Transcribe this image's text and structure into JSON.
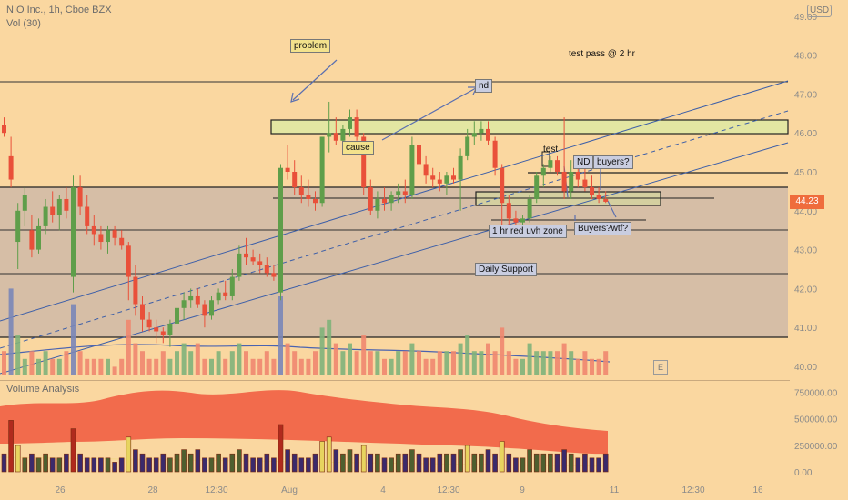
{
  "header": {
    "symbol": "NIO Inc., 1h, Cboe BZX",
    "volume_label": "Vol (30)",
    "currency": "USD",
    "indicator_title": "Volume Analysis"
  },
  "last_price": {
    "value": 44.23,
    "label": "44.23"
  },
  "pane_button": "E",
  "annotations": [
    {
      "id": "problem",
      "text": "problem"
    },
    {
      "id": "test-pass",
      "text": "test pass @ 2 hr"
    },
    {
      "id": "nd-top",
      "text": "nd"
    },
    {
      "id": "cause",
      "text": "cause"
    },
    {
      "id": "test",
      "text": "test"
    },
    {
      "id": "nd",
      "text": "ND"
    },
    {
      "id": "buyers",
      "text": "buyers?"
    },
    {
      "id": "red-uvh",
      "text": "1 hr red uvh zone"
    },
    {
      "id": "buyers-wtf",
      "text": "Buyers?wtf?"
    },
    {
      "id": "daily-support",
      "text": "Daily Support"
    }
  ],
  "colors": {
    "background": "#fad7a0",
    "up": "#5f9e4a",
    "down": "#e9503a",
    "zone_fill": "#e3e6a2",
    "range_fill": "#c9b6a8",
    "indicator_band": "#f26b4c"
  },
  "chart_data": [
    {
      "type": "candlestick",
      "title": "NIO Inc., 1h, Cboe BZX",
      "ylim": [
        39.8,
        49.2
      ],
      "y_ticks": [
        "40.00",
        "41.00",
        "42.00",
        "43.00",
        "44.00",
        "45.00",
        "46.00",
        "47.00",
        "48.00",
        "49.00"
      ],
      "x_ticks": [
        "26",
        "28",
        "12:30",
        "Aug",
        "4",
        "12:30",
        "9",
        "11",
        "12:30",
        "16"
      ],
      "series": [
        {
          "name": "NIO",
          "values": [
            {
              "o": 46.2,
              "h": 46.4,
              "l": 45.9,
              "c": 46.0
            },
            {
              "o": 45.4,
              "h": 45.9,
              "l": 44.6,
              "c": 44.8
            },
            {
              "o": 43.2,
              "h": 44.2,
              "l": 42.5,
              "c": 44.0
            },
            {
              "o": 44.0,
              "h": 44.6,
              "l": 43.6,
              "c": 44.4
            },
            {
              "o": 43.5,
              "h": 43.9,
              "l": 42.8,
              "c": 43.0
            },
            {
              "o": 43.0,
              "h": 43.8,
              "l": 42.9,
              "c": 43.6
            },
            {
              "o": 43.6,
              "h": 44.3,
              "l": 43.4,
              "c": 44.1
            },
            {
              "o": 44.1,
              "h": 44.5,
              "l": 43.7,
              "c": 43.9
            },
            {
              "o": 43.9,
              "h": 44.4,
              "l": 43.5,
              "c": 44.3
            },
            {
              "o": 44.3,
              "h": 44.6,
              "l": 43.8,
              "c": 44.0
            },
            {
              "o": 42.3,
              "h": 44.9,
              "l": 41.9,
              "c": 44.6
            },
            {
              "o": 44.6,
              "h": 44.9,
              "l": 43.9,
              "c": 44.1
            },
            {
              "o": 44.1,
              "h": 44.4,
              "l": 43.4,
              "c": 43.6
            },
            {
              "o": 43.6,
              "h": 43.9,
              "l": 43.1,
              "c": 43.4
            },
            {
              "o": 43.4,
              "h": 43.6,
              "l": 43.0,
              "c": 43.2
            },
            {
              "o": 43.2,
              "h": 43.6,
              "l": 42.9,
              "c": 43.5
            },
            {
              "o": 43.5,
              "h": 43.6,
              "l": 43.1,
              "c": 43.3
            },
            {
              "o": 43.3,
              "h": 43.5,
              "l": 43.0,
              "c": 43.1
            },
            {
              "o": 43.1,
              "h": 43.2,
              "l": 41.7,
              "c": 42.3
            },
            {
              "o": 42.3,
              "h": 42.6,
              "l": 41.3,
              "c": 41.6
            },
            {
              "o": 41.6,
              "h": 41.8,
              "l": 40.9,
              "c": 41.2
            },
            {
              "o": 41.2,
              "h": 41.4,
              "l": 40.9,
              "c": 41.0
            },
            {
              "o": 41.0,
              "h": 41.2,
              "l": 40.6,
              "c": 40.9
            },
            {
              "o": 40.9,
              "h": 41.0,
              "l": 40.6,
              "c": 40.8
            },
            {
              "o": 40.8,
              "h": 41.2,
              "l": 40.5,
              "c": 41.1
            },
            {
              "o": 41.1,
              "h": 41.6,
              "l": 41.0,
              "c": 41.5
            },
            {
              "o": 41.5,
              "h": 41.9,
              "l": 41.2,
              "c": 41.7
            },
            {
              "o": 41.7,
              "h": 42.0,
              "l": 41.5,
              "c": 41.8
            },
            {
              "o": 41.8,
              "h": 42.0,
              "l": 41.5,
              "c": 41.6
            },
            {
              "o": 41.6,
              "h": 41.7,
              "l": 41.0,
              "c": 41.3
            },
            {
              "o": 41.3,
              "h": 41.8,
              "l": 41.2,
              "c": 41.7
            },
            {
              "o": 41.7,
              "h": 42.0,
              "l": 41.6,
              "c": 41.9
            },
            {
              "o": 41.9,
              "h": 42.2,
              "l": 41.7,
              "c": 41.8
            },
            {
              "o": 41.8,
              "h": 42.5,
              "l": 41.7,
              "c": 42.3
            },
            {
              "o": 42.3,
              "h": 43.1,
              "l": 42.2,
              "c": 42.9
            },
            {
              "o": 42.9,
              "h": 43.3,
              "l": 42.6,
              "c": 42.8
            },
            {
              "o": 42.8,
              "h": 43.0,
              "l": 42.6,
              "c": 42.7
            },
            {
              "o": 42.7,
              "h": 42.9,
              "l": 42.4,
              "c": 42.6
            },
            {
              "o": 42.6,
              "h": 42.8,
              "l": 42.3,
              "c": 42.4
            },
            {
              "o": 42.4,
              "h": 42.6,
              "l": 42.2,
              "c": 42.3
            },
            {
              "o": 41.9,
              "h": 45.2,
              "l": 41.7,
              "c": 45.1
            },
            {
              "o": 45.1,
              "h": 45.7,
              "l": 44.8,
              "c": 45.0
            },
            {
              "o": 45.0,
              "h": 45.3,
              "l": 44.4,
              "c": 44.6
            },
            {
              "o": 44.6,
              "h": 44.9,
              "l": 44.2,
              "c": 44.4
            },
            {
              "o": 44.4,
              "h": 44.8,
              "l": 44.1,
              "c": 44.3
            },
            {
              "o": 44.3,
              "h": 44.5,
              "l": 44.0,
              "c": 44.2
            },
            {
              "o": 44.2,
              "h": 45.9,
              "l": 44.1,
              "c": 45.9
            },
            {
              "o": 45.9,
              "h": 46.8,
              "l": 45.5,
              "c": 46.0
            },
            {
              "o": 46.0,
              "h": 46.4,
              "l": 45.7,
              "c": 45.8
            },
            {
              "o": 45.8,
              "h": 46.2,
              "l": 45.6,
              "c": 46.1
            },
            {
              "o": 46.1,
              "h": 46.6,
              "l": 45.9,
              "c": 46.4
            },
            {
              "o": 46.4,
              "h": 46.6,
              "l": 45.8,
              "c": 45.9
            },
            {
              "o": 45.9,
              "h": 46.0,
              "l": 44.4,
              "c": 44.6
            },
            {
              "o": 44.6,
              "h": 44.8,
              "l": 43.9,
              "c": 44.0
            },
            {
              "o": 44.0,
              "h": 44.5,
              "l": 43.8,
              "c": 44.3
            },
            {
              "o": 44.3,
              "h": 44.6,
              "l": 44.0,
              "c": 44.2
            },
            {
              "o": 44.2,
              "h": 44.5,
              "l": 44.0,
              "c": 44.4
            },
            {
              "o": 44.4,
              "h": 44.7,
              "l": 44.2,
              "c": 44.5
            },
            {
              "o": 44.5,
              "h": 44.8,
              "l": 44.2,
              "c": 44.4
            },
            {
              "o": 44.4,
              "h": 45.9,
              "l": 44.3,
              "c": 45.7
            },
            {
              "o": 45.7,
              "h": 45.8,
              "l": 45.1,
              "c": 45.2
            },
            {
              "o": 45.2,
              "h": 45.4,
              "l": 44.7,
              "c": 44.9
            },
            {
              "o": 44.9,
              "h": 45.1,
              "l": 44.6,
              "c": 44.8
            },
            {
              "o": 44.8,
              "h": 45.0,
              "l": 44.5,
              "c": 44.7
            },
            {
              "o": 44.7,
              "h": 45.0,
              "l": 44.4,
              "c": 44.9
            },
            {
              "o": 44.9,
              "h": 45.1,
              "l": 44.7,
              "c": 44.8
            },
            {
              "o": 44.8,
              "h": 45.6,
              "l": 44.0,
              "c": 45.4
            },
            {
              "o": 45.4,
              "h": 46.1,
              "l": 45.3,
              "c": 45.9
            },
            {
              "o": 45.9,
              "h": 46.3,
              "l": 45.7,
              "c": 46.0
            },
            {
              "o": 46.0,
              "h": 46.3,
              "l": 45.8,
              "c": 46.1
            },
            {
              "o": 46.1,
              "h": 46.3,
              "l": 45.7,
              "c": 45.8
            },
            {
              "o": 45.8,
              "h": 45.9,
              "l": 44.9,
              "c": 45.1
            },
            {
              "o": 45.1,
              "h": 45.2,
              "l": 43.5,
              "c": 44.2
            },
            {
              "o": 44.2,
              "h": 44.4,
              "l": 43.6,
              "c": 43.8
            },
            {
              "o": 43.8,
              "h": 44.0,
              "l": 43.6,
              "c": 43.7
            },
            {
              "o": 43.7,
              "h": 43.9,
              "l": 43.6,
              "c": 43.8
            },
            {
              "o": 43.8,
              "h": 44.4,
              "l": 43.7,
              "c": 44.3
            },
            {
              "o": 44.3,
              "h": 45.0,
              "l": 44.2,
              "c": 44.9
            },
            {
              "o": 44.9,
              "h": 45.2,
              "l": 44.6,
              "c": 45.1
            },
            {
              "o": 45.1,
              "h": 45.4,
              "l": 45.0,
              "c": 45.3
            },
            {
              "o": 45.3,
              "h": 45.4,
              "l": 44.9,
              "c": 45.0
            },
            {
              "o": 45.0,
              "h": 46.4,
              "l": 44.3,
              "c": 44.5
            },
            {
              "o": 44.5,
              "h": 45.3,
              "l": 44.3,
              "c": 45.0
            },
            {
              "o": 45.0,
              "h": 45.1,
              "l": 44.6,
              "c": 44.8
            },
            {
              "o": 44.8,
              "h": 45.1,
              "l": 44.5,
              "c": 44.6
            },
            {
              "o": 44.6,
              "h": 44.9,
              "l": 44.3,
              "c": 44.4
            },
            {
              "o": 44.4,
              "h": 44.6,
              "l": 44.2,
              "c": 44.3
            },
            {
              "o": 44.3,
              "h": 44.5,
              "l": 44.2,
              "c": 44.23
            }
          ]
        }
      ],
      "volume": [
        3,
        11,
        5,
        2,
        3,
        2,
        3,
        2,
        2,
        3,
        9,
        3,
        2,
        2,
        2,
        2,
        1,
        2,
        7,
        4,
        3,
        2,
        2,
        3,
        2,
        3,
        4,
        3,
        4,
        2,
        2,
        3,
        2,
        3,
        4,
        3,
        2,
        2,
        3,
        2,
        10,
        4,
        3,
        2,
        2,
        3,
        6,
        7,
        4,
        3,
        4,
        3,
        5,
        3,
        3,
        2,
        2,
        3,
        3,
        4,
        3,
        2,
        2,
        3,
        3,
        3,
        4,
        5,
        3,
        3,
        4,
        3,
        6,
        3,
        2,
        2,
        4,
        3,
        3,
        3,
        3,
        4,
        3,
        2,
        3,
        2,
        2,
        3
      ]
    },
    {
      "type": "bar",
      "title": "Volume Analysis",
      "ylim": [
        0,
        900000
      ],
      "y_ticks": [
        "0.00",
        "250000.00",
        "500000.00",
        "750000.00"
      ]
    }
  ]
}
